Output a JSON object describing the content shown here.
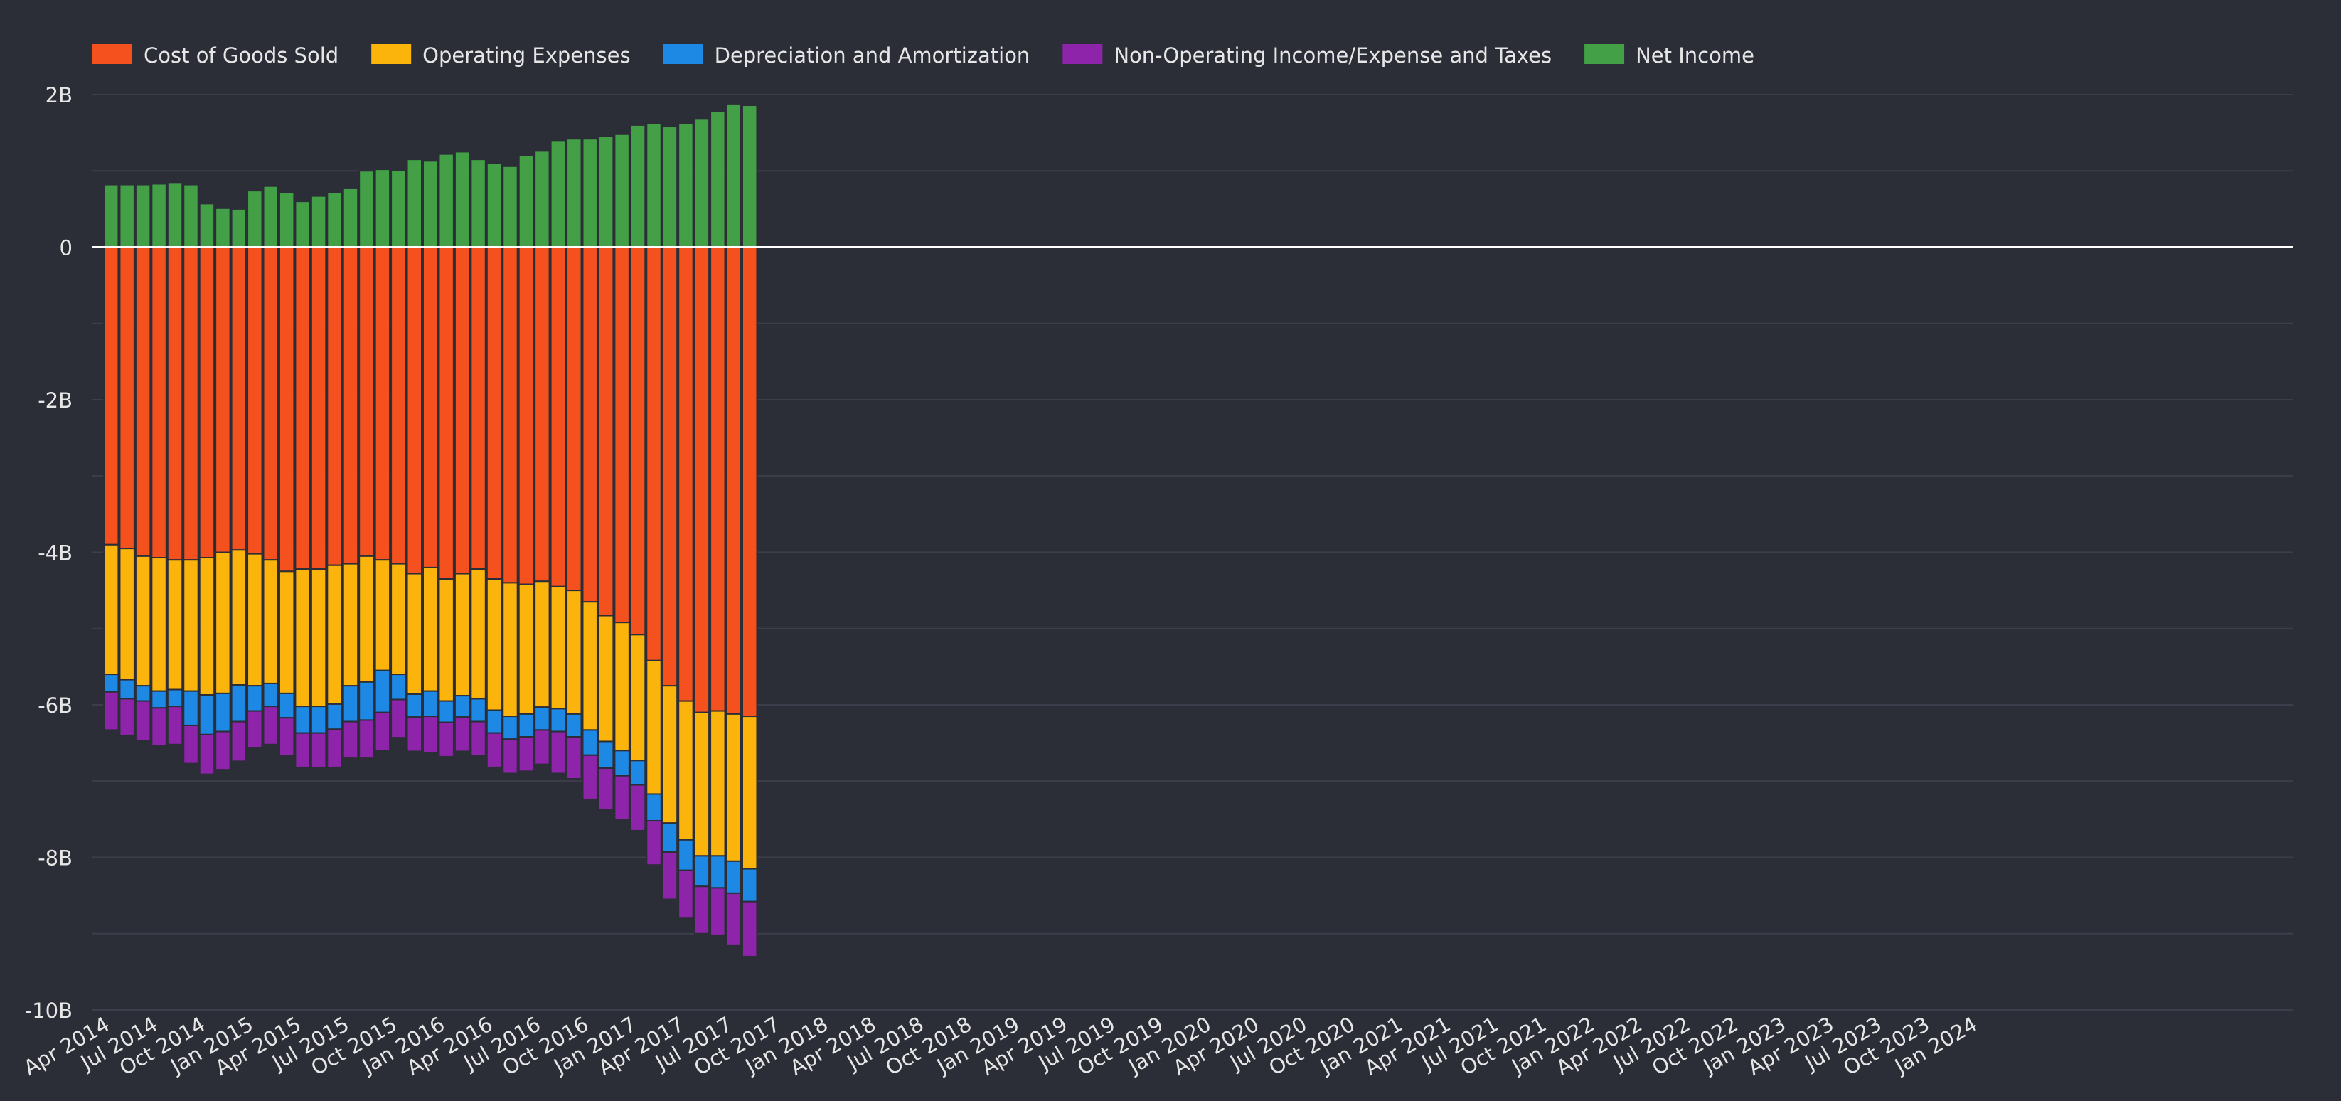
{
  "chart_data": {
    "type": "bar",
    "stacked": true,
    "legend_position": "top-left",
    "grid": true,
    "ylim": [
      -10000000000,
      2000000000
    ],
    "y_ticks": [
      {
        "value": 2000000000,
        "label": "2B"
      },
      {
        "value": 0,
        "label": "0"
      },
      {
        "value": -2000000000,
        "label": "-2B"
      },
      {
        "value": -4000000000,
        "label": "-4B"
      },
      {
        "value": -6000000000,
        "label": "-6B"
      },
      {
        "value": -8000000000,
        "label": "-8B"
      },
      {
        "value": -10000000000,
        "label": "-10B"
      }
    ],
    "x_tick_labels": [
      "Apr 2014",
      "Jul 2014",
      "Oct 2014",
      "Jan 2015",
      "Apr 2015",
      "Jul 2015",
      "Oct 2015",
      "Jan 2016",
      "Apr 2016",
      "Jul 2016",
      "Oct 2016",
      "Jan 2017",
      "Apr 2017",
      "Jul 2017",
      "Oct 2017",
      "Jan 2018",
      "Apr 2018",
      "Jul 2018",
      "Oct 2018",
      "Jan 2019",
      "Apr 2019",
      "Jul 2019",
      "Oct 2019",
      "Jan 2020",
      "Apr 2020",
      "Jul 2020",
      "Oct 2020",
      "Jan 2021",
      "Apr 2021",
      "Jul 2021",
      "Oct 2021",
      "Jan 2022",
      "Apr 2022",
      "Jul 2022",
      "Oct 2022",
      "Jan 2023",
      "Apr 2023",
      "Jul 2023",
      "Oct 2023",
      "Jan 2024"
    ],
    "bars_per_quarter": 3,
    "unit": "billions",
    "series": [
      {
        "name": "Cost of Goods Sold",
        "color": "#f4511e",
        "values": [
          -3.9,
          -3.95,
          -4.05,
          -4.07,
          -4.1,
          -4.1,
          -4.07,
          -4.0,
          -3.97,
          -4.02,
          -4.1,
          -4.25,
          -4.22,
          -4.22,
          -4.17,
          -4.15,
          -4.05,
          -4.1,
          -4.15,
          -4.28,
          -4.2,
          -4.35,
          -4.28,
          -4.22,
          -4.35,
          -4.4,
          -4.42,
          -4.38,
          -4.45,
          -4.5,
          -4.65,
          -4.83,
          -4.92,
          -5.08,
          -5.42,
          -5.75,
          -5.95,
          -6.1,
          -6.08,
          -6.12,
          -6.15
        ]
      },
      {
        "name": "Operating Expenses",
        "color": "#fbb40c",
        "values": [
          -1.7,
          -1.72,
          -1.7,
          -1.75,
          -1.7,
          -1.72,
          -1.8,
          -1.85,
          -1.77,
          -1.73,
          -1.62,
          -1.6,
          -1.8,
          -1.8,
          -1.82,
          -1.6,
          -1.65,
          -1.45,
          -1.45,
          -1.58,
          -1.62,
          -1.6,
          -1.6,
          -1.7,
          -1.72,
          -1.75,
          -1.7,
          -1.65,
          -1.6,
          -1.62,
          -1.68,
          -1.65,
          -1.68,
          -1.65,
          -1.75,
          -1.8,
          -1.82,
          -1.88,
          -1.9,
          -1.93,
          -2.0
        ]
      },
      {
        "name": "Depreciation and Amortization",
        "color": "#1e88e5",
        "values": [
          -0.23,
          -0.25,
          -0.2,
          -0.22,
          -0.22,
          -0.45,
          -0.52,
          -0.5,
          -0.48,
          -0.33,
          -0.3,
          -0.32,
          -0.35,
          -0.35,
          -0.33,
          -0.47,
          -0.5,
          -0.55,
          -0.33,
          -0.3,
          -0.33,
          -0.28,
          -0.28,
          -0.3,
          -0.3,
          -0.3,
          -0.3,
          -0.3,
          -0.3,
          -0.3,
          -0.33,
          -0.35,
          -0.33,
          -0.32,
          -0.35,
          -0.38,
          -0.4,
          -0.4,
          -0.42,
          -0.42,
          -0.43
        ]
      },
      {
        "name": "Non-Operating Income/Expense and Taxes",
        "color": "#8e24aa",
        "values": [
          -0.5,
          -0.48,
          -0.52,
          -0.5,
          -0.5,
          -0.5,
          -0.52,
          -0.5,
          -0.52,
          -0.48,
          -0.5,
          -0.5,
          -0.45,
          -0.45,
          -0.5,
          -0.48,
          -0.5,
          -0.5,
          -0.5,
          -0.45,
          -0.48,
          -0.45,
          -0.45,
          -0.45,
          -0.45,
          -0.45,
          -0.45,
          -0.45,
          -0.55,
          -0.55,
          -0.58,
          -0.55,
          -0.58,
          -0.6,
          -0.58,
          -0.62,
          -0.62,
          -0.62,
          -0.62,
          -0.68,
          -0.72
        ]
      },
      {
        "name": "Net Income",
        "color": "#43a047",
        "values": [
          0.82,
          0.82,
          0.82,
          0.83,
          0.85,
          0.82,
          0.57,
          0.51,
          0.5,
          0.74,
          0.8,
          0.72,
          0.6,
          0.67,
          0.72,
          0.77,
          1.0,
          1.02,
          1.01,
          1.15,
          1.13,
          1.22,
          1.25,
          1.15,
          1.1,
          1.06,
          1.2,
          1.26,
          1.4,
          1.42,
          1.42,
          1.45,
          1.48,
          1.6,
          1.62,
          1.58,
          1.62,
          1.68,
          1.78,
          1.88,
          1.86
        ]
      }
    ]
  }
}
